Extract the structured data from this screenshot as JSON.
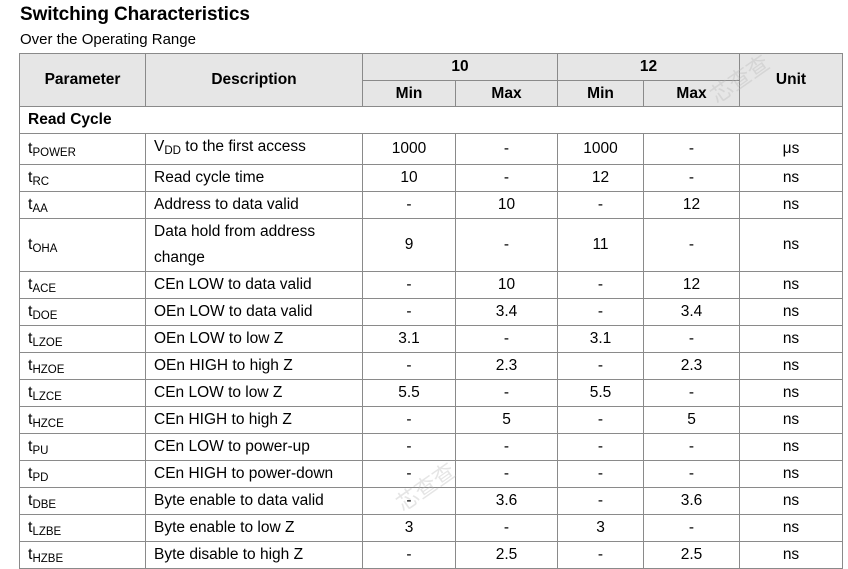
{
  "title": "Switching Characteristics",
  "subtitle": "Over the Operating Range",
  "header": {
    "parameter": "Parameter",
    "description": "Description",
    "group10": "10",
    "group12": "12",
    "min": "Min",
    "max": "Max",
    "unit": "Unit"
  },
  "section": "Read Cycle",
  "rows": [
    {
      "sym": "t",
      "sub": "POWER",
      "desc": "V",
      "desc_sub": "DD",
      "desc_rest": " to the first access",
      "min10": "1000",
      "max10": "-",
      "min12": "1000",
      "max12": "-",
      "unit": "μs"
    },
    {
      "sym": "t",
      "sub": "RC",
      "desc": "Read cycle time",
      "min10": "10",
      "max10": "-",
      "min12": "12",
      "max12": "-",
      "unit": "ns"
    },
    {
      "sym": "t",
      "sub": "AA",
      "desc": "Address to data valid",
      "min10": "-",
      "max10": "10",
      "min12": "-",
      "max12": "12",
      "unit": "ns"
    },
    {
      "sym": "t",
      "sub": "OHA",
      "desc_line1": "Data hold from address",
      "desc_line2": "change",
      "min10": "9",
      "max10": "-",
      "min12": "11",
      "max12": "-",
      "unit": "ns"
    },
    {
      "sym": "t",
      "sub": "ACE",
      "desc": "CEn LOW to data valid",
      "min10": "-",
      "max10": "10",
      "min12": "-",
      "max12": "12",
      "unit": "ns"
    },
    {
      "sym": "t",
      "sub": "DOE",
      "desc": "OEn LOW to data valid",
      "min10": "-",
      "max10": "3.4",
      "min12": "-",
      "max12": "3.4",
      "unit": "ns"
    },
    {
      "sym": "t",
      "sub": "LZOE",
      "desc": "OEn LOW to low Z",
      "min10": "3.1",
      "max10": "-",
      "min12": "3.1",
      "max12": "-",
      "unit": "ns"
    },
    {
      "sym": "t",
      "sub": "HZOE",
      "desc": "OEn HIGH to high Z",
      "min10": "-",
      "max10": "2.3",
      "min12": "-",
      "max12": "2.3",
      "unit": "ns"
    },
    {
      "sym": "t",
      "sub": "LZCE",
      "desc": "CEn LOW to low Z",
      "min10": "5.5",
      "max10": "-",
      "min12": "5.5",
      "max12": "-",
      "unit": "ns"
    },
    {
      "sym": "t",
      "sub": "HZCE",
      "desc": "CEn HIGH to high Z",
      "min10": "-",
      "max10": "5",
      "min12": "-",
      "max12": "5",
      "unit": "ns"
    },
    {
      "sym": "t",
      "sub": "PU",
      "desc": "CEn LOW to power-up",
      "min10": "-",
      "max10": "-",
      "min12": "-",
      "max12": "-",
      "unit": "ns"
    },
    {
      "sym": "t",
      "sub": "PD",
      "desc": "CEn HIGH to power-down",
      "min10": "-",
      "max10": "-",
      "min12": "-",
      "max12": "-",
      "unit": "ns"
    },
    {
      "sym": "t",
      "sub": "DBE",
      "desc": "Byte enable to data valid",
      "min10": "-",
      "max10": "3.6",
      "min12": "-",
      "max12": "3.6",
      "unit": "ns"
    },
    {
      "sym": "t",
      "sub": "LZBE",
      "desc": "Byte enable to low Z",
      "min10": "3",
      "max10": "-",
      "min12": "3",
      "max12": "-",
      "unit": "ns"
    },
    {
      "sym": "t",
      "sub": "HZBE",
      "desc": "Byte disable to high Z",
      "min10": "-",
      "max10": "2.5",
      "min12": "-",
      "max12": "2.5",
      "unit": "ns"
    }
  ],
  "watermark": "芯查查"
}
